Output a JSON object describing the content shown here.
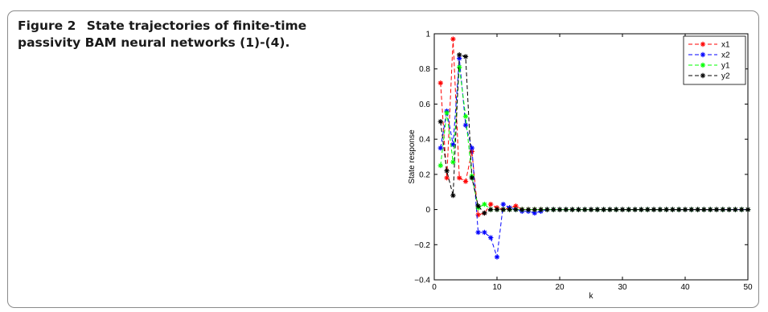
{
  "figure": {
    "label": "Figure 2",
    "caption": "State trajectories of finite-time passivity BAM neural networks (1)-(4)."
  },
  "chart_data": {
    "type": "line",
    "xlabel": "k",
    "ylabel": "State response",
    "xlim": [
      0,
      50
    ],
    "ylim": [
      -0.4,
      1
    ],
    "xticks": [
      0,
      10,
      20,
      30,
      40,
      50
    ],
    "yticks": [
      -0.4,
      -0.2,
      0,
      0.2,
      0.4,
      0.6,
      0.8,
      1
    ],
    "ytick_labels": [
      "−0.4",
      "−0.2",
      "0",
      "0.2",
      "0.4",
      "0.6",
      "0.8",
      "1"
    ],
    "grid": false,
    "legend_position": "top-right",
    "marker": "*",
    "line_style": "dashed",
    "x": [
      1,
      2,
      3,
      4,
      5,
      6,
      7,
      8,
      9,
      10,
      11,
      12,
      13,
      14,
      15,
      16,
      17,
      18,
      19,
      20,
      21,
      22,
      23,
      24,
      25,
      26,
      27,
      28,
      29,
      30,
      31,
      32,
      33,
      34,
      35,
      36,
      37,
      38,
      39,
      40,
      41,
      42,
      43,
      44,
      45,
      46,
      47,
      48,
      49,
      50
    ],
    "series": [
      {
        "name": "x1",
        "color": "#ff0000",
        "values": [
          0.72,
          0.18,
          0.97,
          0.18,
          0.16,
          0.33,
          -0.03,
          -0.02,
          0.03,
          0.01,
          0.0,
          0.01,
          0.02,
          0.0,
          0.0,
          0.0,
          0.0,
          0.0,
          0.0,
          0.0,
          0.0,
          0.0,
          0.0,
          0.0,
          0.0,
          0.0,
          0.0,
          0.0,
          0.0,
          0.0,
          0.0,
          0.0,
          0.0,
          0.0,
          0.0,
          0.0,
          0.0,
          0.0,
          0.0,
          0.0,
          0.0,
          0.0,
          0.0,
          0.0,
          0.0,
          0.0,
          0.0,
          0.0,
          0.0,
          0.0
        ]
      },
      {
        "name": "x2",
        "color": "#0000ff",
        "values": [
          0.35,
          0.56,
          0.37,
          0.86,
          0.48,
          0.35,
          -0.13,
          -0.13,
          -0.16,
          -0.27,
          0.03,
          0.01,
          0.0,
          -0.01,
          -0.01,
          -0.02,
          -0.01,
          0.0,
          0.0,
          0.0,
          0.0,
          0.0,
          0.0,
          0.0,
          0.0,
          0.0,
          0.0,
          0.0,
          0.0,
          0.0,
          0.0,
          0.0,
          0.0,
          0.0,
          0.0,
          0.0,
          0.0,
          0.0,
          0.0,
          0.0,
          0.0,
          0.0,
          0.0,
          0.0,
          0.0,
          0.0,
          0.0,
          0.0,
          0.0,
          0.0
        ]
      },
      {
        "name": "y1",
        "color": "#00ff00",
        "values": [
          0.25,
          0.55,
          0.27,
          0.81,
          0.53,
          0.19,
          0.01,
          0.03,
          0.0,
          0.0,
          0.0,
          0.0,
          0.0,
          0.0,
          0.0,
          0.0,
          0.0,
          0.0,
          0.0,
          0.0,
          0.0,
          0.0,
          0.0,
          0.0,
          0.0,
          0.0,
          0.0,
          0.0,
          0.0,
          0.0,
          0.0,
          0.0,
          0.0,
          0.0,
          0.0,
          0.0,
          0.0,
          0.0,
          0.0,
          0.0,
          0.0,
          0.0,
          0.0,
          0.0,
          0.0,
          0.0,
          0.0,
          0.0,
          0.0,
          0.0
        ]
      },
      {
        "name": "y2",
        "color": "#000000",
        "values": [
          0.5,
          0.22,
          0.08,
          0.88,
          0.87,
          0.18,
          0.02,
          -0.02,
          0.0,
          0.0,
          0.0,
          0.0,
          0.0,
          0.0,
          0.0,
          0.0,
          0.0,
          0.0,
          0.0,
          0.0,
          0.0,
          0.0,
          0.0,
          0.0,
          0.0,
          0.0,
          0.0,
          0.0,
          0.0,
          0.0,
          0.0,
          0.0,
          0.0,
          0.0,
          0.0,
          0.0,
          0.0,
          0.0,
          0.0,
          0.0,
          0.0,
          0.0,
          0.0,
          0.0,
          0.0,
          0.0,
          0.0,
          0.0,
          0.0,
          0.0
        ]
      }
    ]
  }
}
